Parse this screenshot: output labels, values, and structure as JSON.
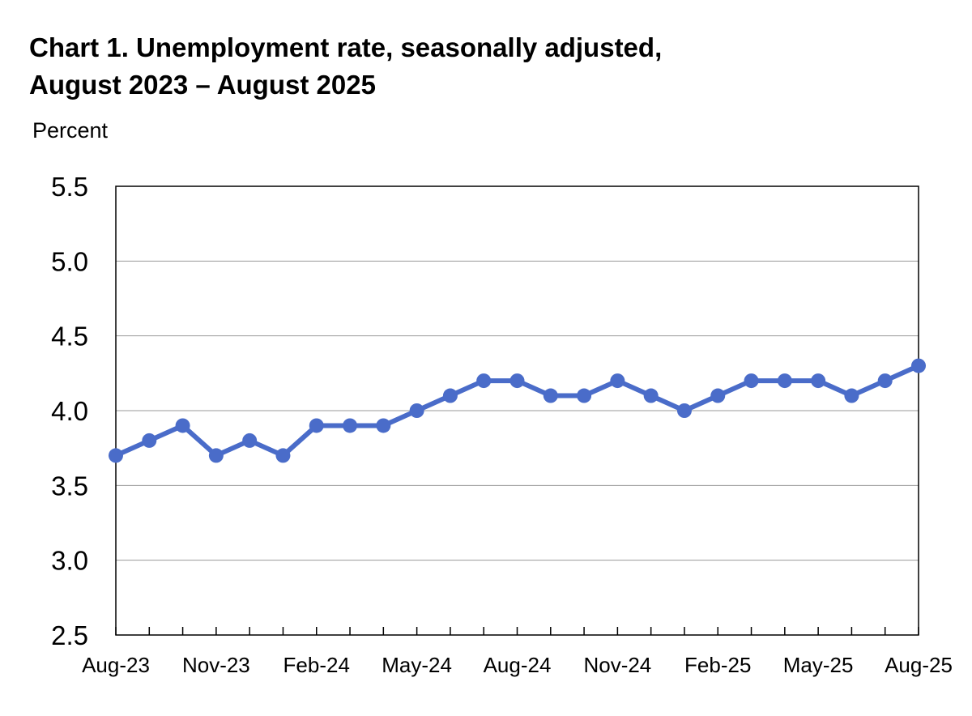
{
  "chart_data": {
    "type": "line",
    "title_line1": "Chart 1. Unemployment rate, seasonally adjusted,",
    "title_line2": "August 2023 – August 2025",
    "ylabel": "Percent",
    "xlabel": "",
    "ylim": [
      2.5,
      5.5
    ],
    "yticks": [
      "2.5",
      "3.0",
      "3.5",
      "4.0",
      "4.5",
      "5.0",
      "5.5"
    ],
    "grid": true,
    "legend": "none",
    "line_color": "#4a6cc9",
    "x": [
      "Aug-23",
      "Sep-23",
      "Oct-23",
      "Nov-23",
      "Dec-23",
      "Jan-24",
      "Feb-24",
      "Mar-24",
      "Apr-24",
      "May-24",
      "Jun-24",
      "Jul-24",
      "Aug-24",
      "Sep-24",
      "Oct-24",
      "Nov-24",
      "Dec-24",
      "Jan-25",
      "Feb-25",
      "Mar-25",
      "Apr-25",
      "May-25",
      "Jun-25",
      "Jul-25",
      "Aug-25"
    ],
    "xtick_labels": [
      "Aug-23",
      "Nov-23",
      "Feb-24",
      "May-24",
      "Aug-24",
      "Nov-24",
      "Feb-25",
      "May-25",
      "Aug-25"
    ],
    "series": [
      {
        "values": [
          3.7,
          3.8,
          3.9,
          3.7,
          3.8,
          3.7,
          3.9,
          3.9,
          3.9,
          4.0,
          4.1,
          4.2,
          4.2,
          4.1,
          4.1,
          4.2,
          4.1,
          4.0,
          4.1,
          4.2,
          4.2,
          4.2,
          4.1,
          4.2,
          4.3
        ]
      }
    ]
  }
}
